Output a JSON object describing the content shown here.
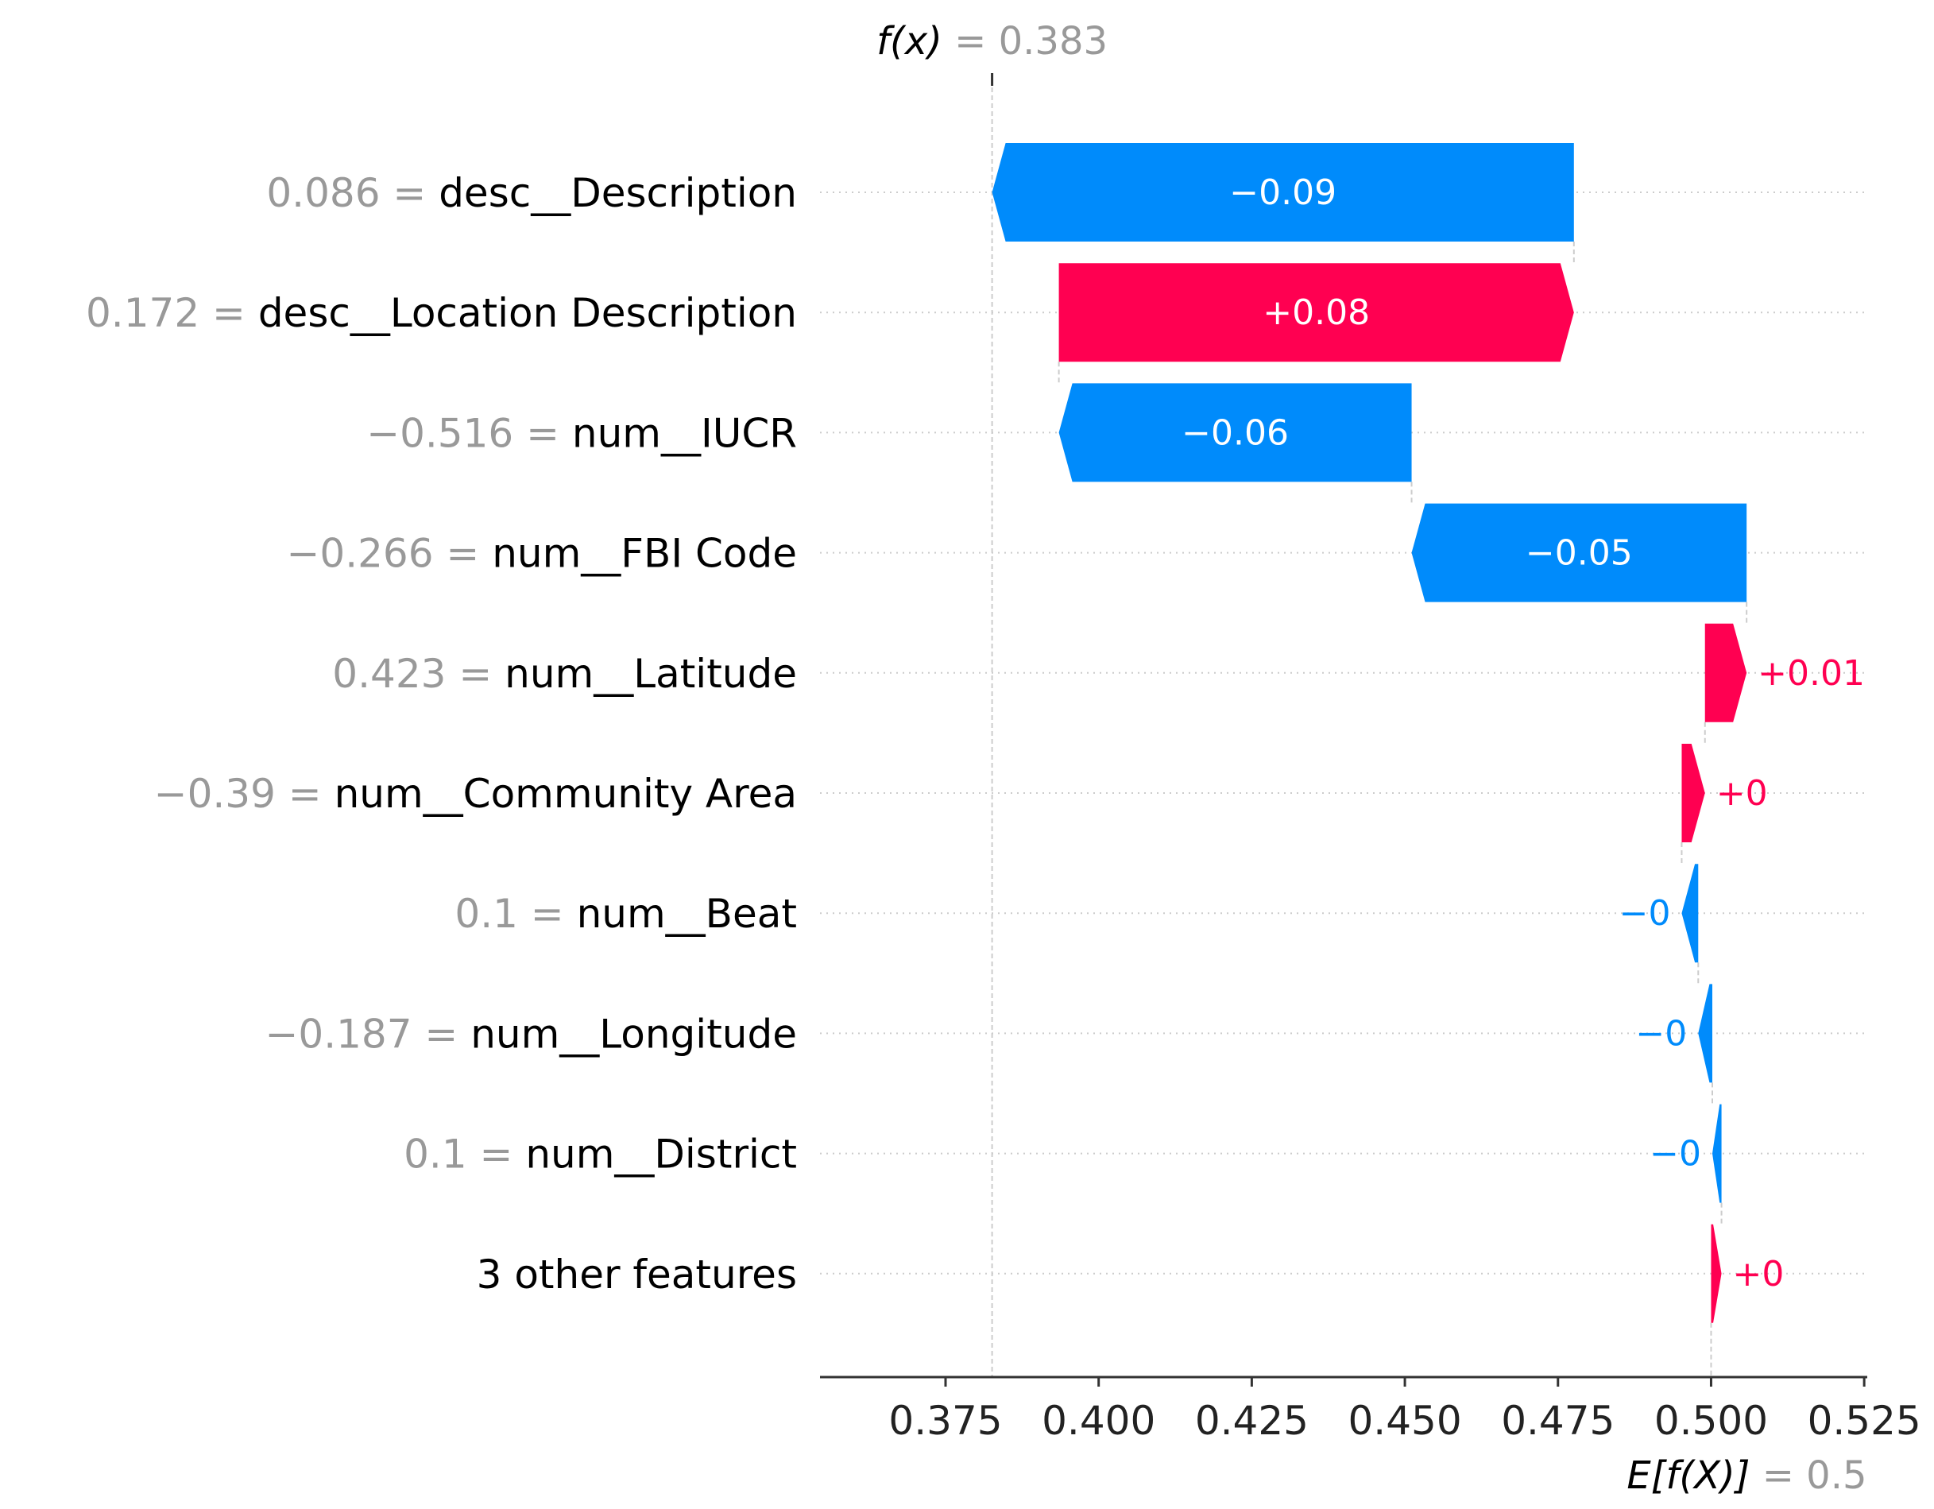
{
  "colors": {
    "positive": "#ff0051",
    "negative": "#008bfb",
    "gray_text": "#999999",
    "dark_text": "#000000",
    "grid": "#cccccc",
    "axis": "#333333"
  },
  "chart_data": {
    "type": "waterfall",
    "fx_label": "f(x)",
    "fx_value_text": "= 0.383",
    "fx_value": 0.3826,
    "ex_label": "E[f(X)]",
    "ex_value_text": "= 0.5",
    "ex_value": 0.5,
    "xlim": [
      0.3545,
      0.5255
    ],
    "xticks": [
      0.375,
      0.4,
      0.425,
      0.45,
      0.475,
      0.5,
      0.525
    ],
    "xtick_labels": [
      "0.375",
      "0.400",
      "0.425",
      "0.450",
      "0.475",
      "0.500",
      "0.525"
    ],
    "features": [
      {
        "value_text": "0.086 =",
        "name": "desc__Description",
        "start": 0.4776,
        "end": 0.3826,
        "label": "−0.09"
      },
      {
        "value_text": "0.172 =",
        "name": "desc__Location Description",
        "start": 0.3935,
        "end": 0.4776,
        "label": "+0.08"
      },
      {
        "value_text": "−0.516 =",
        "name": "num__IUCR",
        "start": 0.4511,
        "end": 0.3935,
        "label": "−0.06"
      },
      {
        "value_text": "−0.266 =",
        "name": "num__FBI Code",
        "start": 0.5058,
        "end": 0.4511,
        "label": "−0.05"
      },
      {
        "value_text": "0.423 =",
        "name": "num__Latitude",
        "start": 0.499,
        "end": 0.5058,
        "label": "+0.01"
      },
      {
        "value_text": "−0.39 =",
        "name": "num__Community Area",
        "start": 0.4952,
        "end": 0.499,
        "label": "+0"
      },
      {
        "value_text": "0.1 =",
        "name": "num__Beat",
        "start": 0.4979,
        "end": 0.4952,
        "label": "−0"
      },
      {
        "value_text": "−0.187 =",
        "name": "num__Longitude",
        "start": 0.5002,
        "end": 0.4979,
        "label": "−0"
      },
      {
        "value_text": "0.1 =",
        "name": "num__District",
        "start": 0.5017,
        "end": 0.5002,
        "label": "−0"
      },
      {
        "value_text": "",
        "name": "3 other features",
        "start": 0.5,
        "end": 0.5017,
        "label": "+0"
      }
    ]
  }
}
